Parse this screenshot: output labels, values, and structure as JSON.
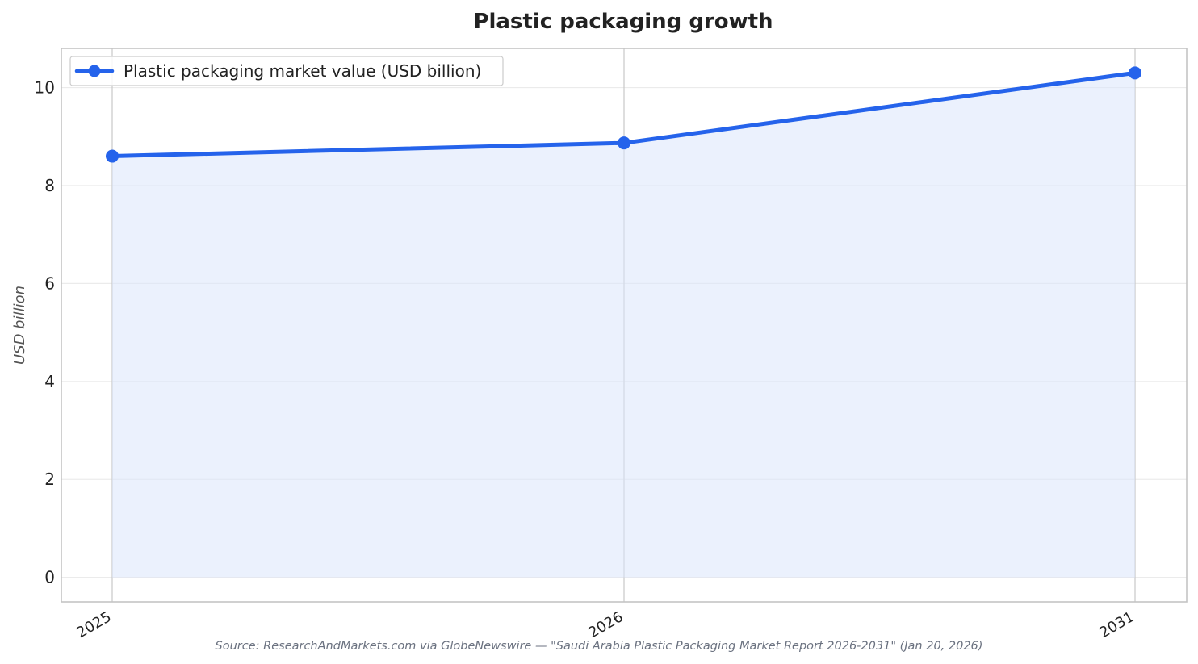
{
  "chart_data": {
    "type": "line",
    "title": "Plastic packaging growth",
    "xlabel": "",
    "ylabel": "USD billion",
    "categories": [
      "2025",
      "2026",
      "2031"
    ],
    "series": [
      {
        "name": "Plastic packaging market value (USD billion)",
        "values": [
          8.6,
          8.87,
          10.3
        ],
        "color": "#2563eb"
      }
    ],
    "fill_under_line": true,
    "fill_color": "#dbe5fb",
    "ylim": [
      -0.5,
      10.8
    ],
    "yticks": [
      0,
      2,
      4,
      6,
      8,
      10
    ],
    "grid": true,
    "legend_position": "top-left",
    "source": "Source: ResearchAndMarkets.com via GlobeNewswire — \"Saudi Arabia Plastic Packaging Market Report 2026-2031\" (Jan 20, 2026)"
  }
}
